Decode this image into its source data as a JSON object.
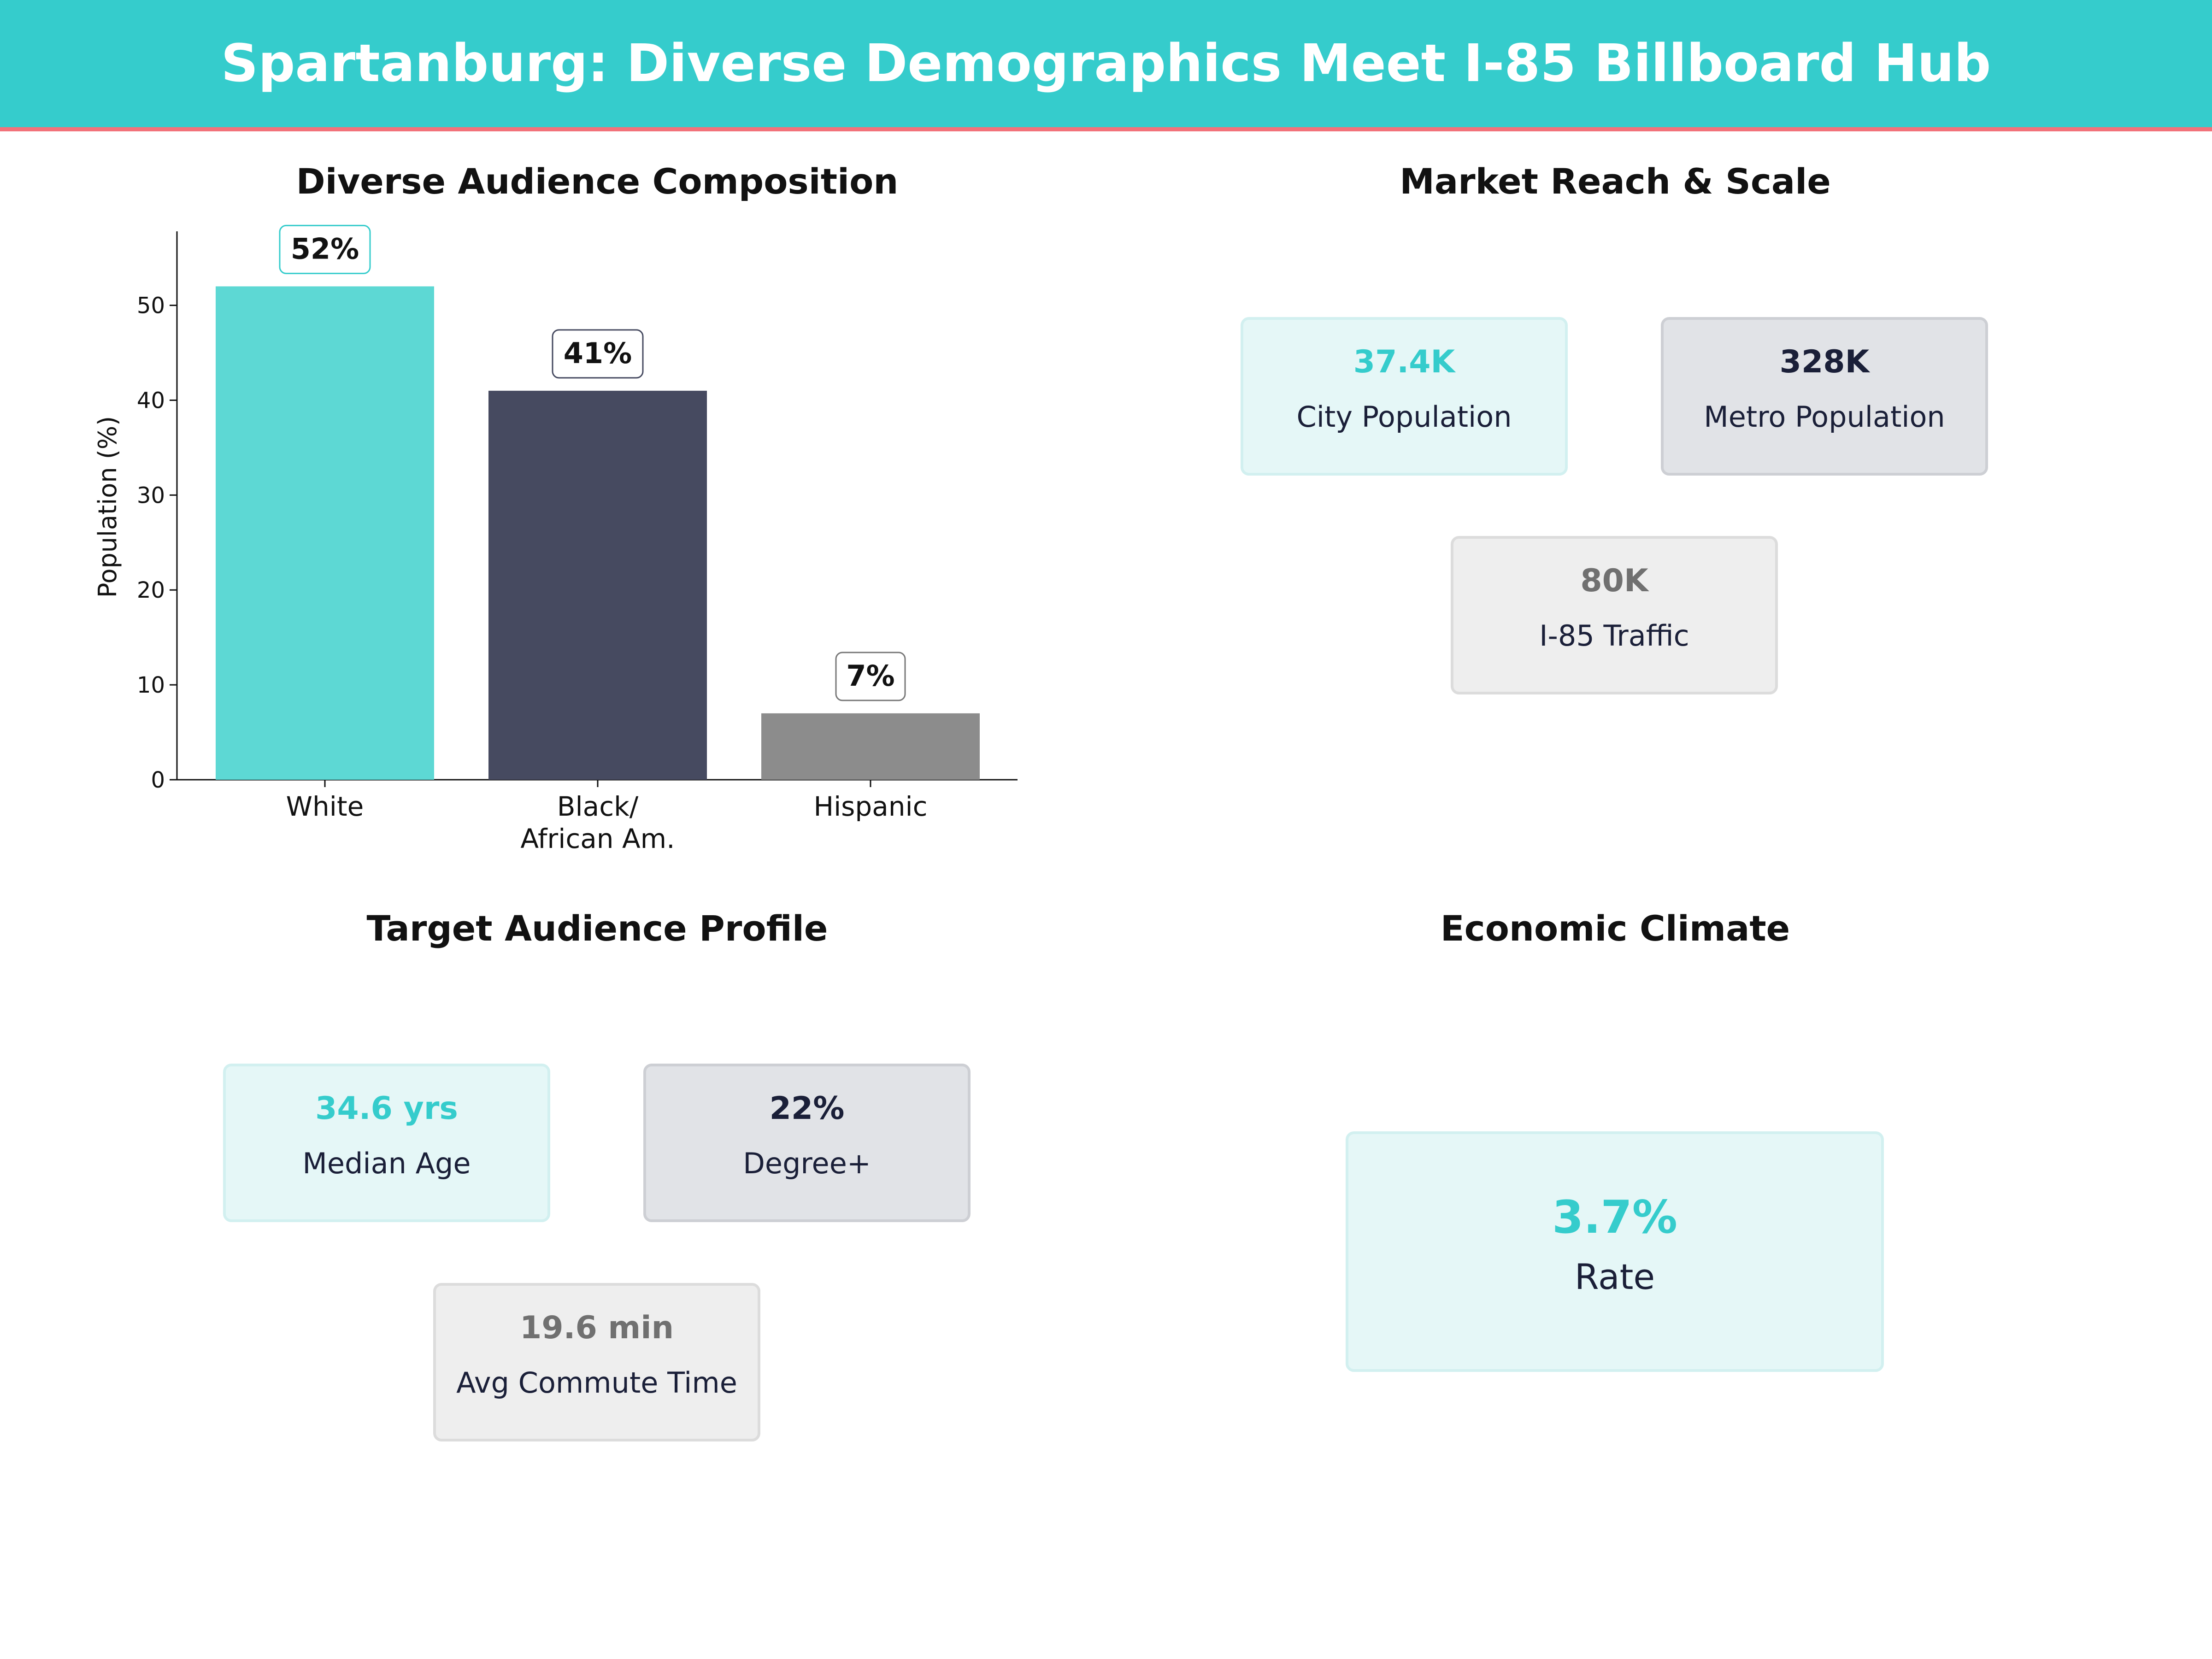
{
  "header": {
    "title": "Spartanburg: Diverse Demographics Meet I-85 Billboard Hub"
  },
  "chart_panel": {
    "title": "Diverse Audience Composition"
  },
  "chart_data": {
    "type": "bar",
    "title": "Diverse Audience Composition",
    "categories": [
      [
        "White"
      ],
      [
        "Black/",
        "African Am."
      ],
      [
        "Hispanic"
      ]
    ],
    "values": [
      52,
      41,
      7
    ],
    "data_labels": [
      "52%",
      "41%",
      "7%"
    ],
    "colors": [
      "#5DD8D4",
      "#464A60",
      "#8C8C8C"
    ],
    "label_border_colors": [
      "#35CCCC",
      "#464A60",
      "#777777"
    ],
    "ylabel": "Population (%)",
    "xlabel": "",
    "ylim": [
      0,
      57.8
    ],
    "yticks": [
      0,
      10,
      20,
      30,
      40,
      50
    ],
    "grid": false
  },
  "market_reach": {
    "title": "Market Reach & Scale",
    "cards": [
      {
        "value": "37.4K",
        "label": "City Population",
        "color": "#35CCCC"
      },
      {
        "value": "328K",
        "label": "Metro Population",
        "color": "#1a1f38"
      },
      {
        "value": "80K",
        "label": "I-85 Traffic",
        "color": "#707070"
      }
    ]
  },
  "target_audience": {
    "title": "Target Audience Profile",
    "cards": [
      {
        "value": "34.6 yrs",
        "label": "Median Age",
        "color": "#35CCCC"
      },
      {
        "value": "22%",
        "label": "Degree+",
        "color": "#1a1f38"
      },
      {
        "value": "19.6 min",
        "label": "Avg Commute Time",
        "color": "#707070"
      }
    ]
  },
  "economic_climate": {
    "title": "Economic Climate",
    "card": {
      "value": "3.7%",
      "label": "Rate",
      "color": "#35CCCC"
    }
  }
}
